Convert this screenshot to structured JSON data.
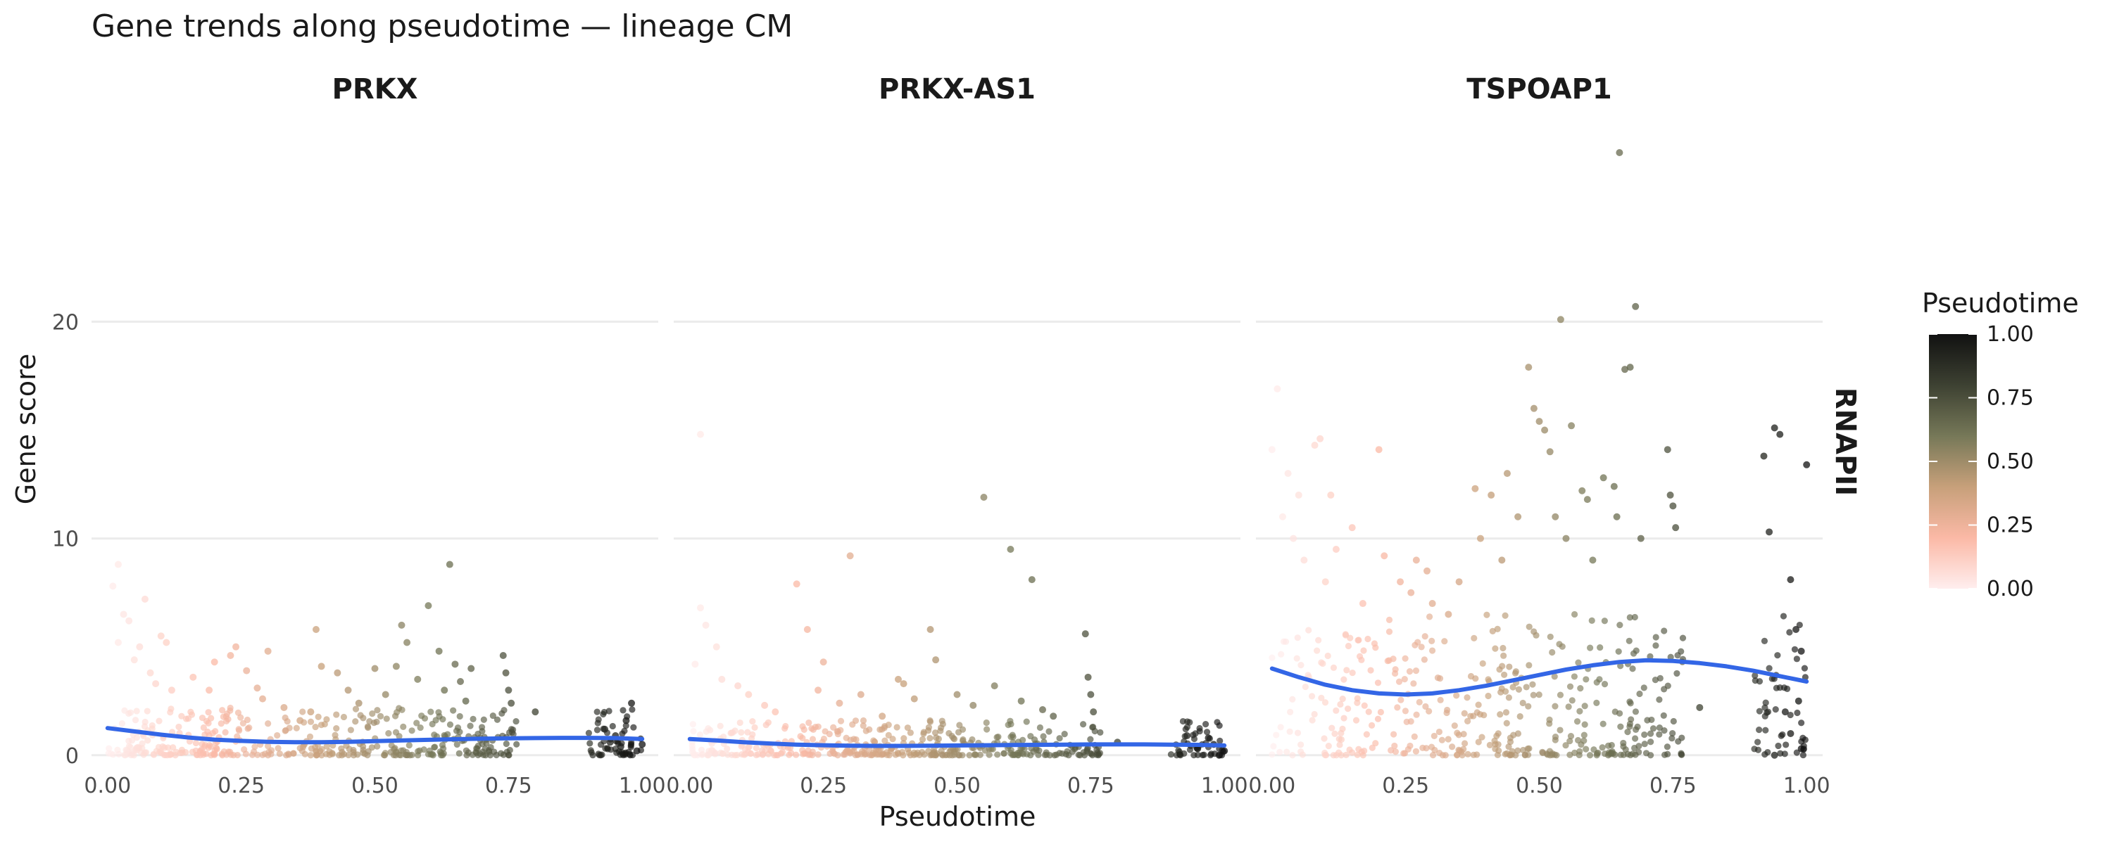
{
  "chart_data": {
    "type": "scatter",
    "title": "Gene trends along pseudotime — lineage CM",
    "xlabel": "Pseudotime",
    "ylabel": "Gene score",
    "xlim": [
      -0.03,
      1.03
    ],
    "ylim": [
      -1.5,
      29
    ],
    "x_ticks": [
      0.0,
      0.25,
      0.5,
      0.75,
      1.0
    ],
    "x_tick_labels": [
      "0.00",
      "0.25",
      "0.50",
      "0.75",
      "1.00"
    ],
    "y_ticks": [
      0,
      10,
      20
    ],
    "y_tick_labels": [
      "0",
      "10",
      "20"
    ],
    "row_strip": "RNAPII",
    "grid": "major-horizontal",
    "legend": {
      "title": "Pseudotime",
      "type": "colorbar",
      "placement": "right",
      "ticks": [
        0.0,
        0.25,
        0.5,
        0.75,
        1.0
      ],
      "tick_labels": [
        "0.00",
        "0.25",
        "0.50",
        "0.75",
        "1.00"
      ],
      "colors": [
        "#ffeeee",
        "#fbb9a6",
        "#c7a07a",
        "#767858",
        "#3d4132",
        "#111111"
      ]
    },
    "trend_color": "#3366e6",
    "panels": [
      {
        "name": "PRKX",
        "trend": [
          [
            0.0,
            1.25
          ],
          [
            0.05,
            1.1
          ],
          [
            0.1,
            0.95
          ],
          [
            0.15,
            0.82
          ],
          [
            0.2,
            0.72
          ],
          [
            0.25,
            0.66
          ],
          [
            0.3,
            0.62
          ],
          [
            0.35,
            0.6
          ],
          [
            0.4,
            0.6
          ],
          [
            0.45,
            0.62
          ],
          [
            0.5,
            0.65
          ],
          [
            0.55,
            0.68
          ],
          [
            0.6,
            0.71
          ],
          [
            0.65,
            0.74
          ],
          [
            0.7,
            0.76
          ],
          [
            0.75,
            0.78
          ],
          [
            0.8,
            0.79
          ],
          [
            0.85,
            0.8
          ],
          [
            0.9,
            0.8
          ],
          [
            0.95,
            0.79
          ],
          [
            1.0,
            0.75
          ]
        ],
        "points": [
          [
            0.02,
            8.8
          ],
          [
            0.01,
            7.8
          ],
          [
            0.03,
            6.5
          ],
          [
            0.07,
            7.2
          ],
          [
            0.04,
            6.2
          ],
          [
            0.02,
            5.2
          ],
          [
            0.06,
            5.0
          ],
          [
            0.1,
            5.5
          ],
          [
            0.11,
            5.2
          ],
          [
            0.05,
            4.4
          ],
          [
            0.08,
            3.8
          ],
          [
            0.09,
            3.3
          ],
          [
            0.12,
            3.0
          ],
          [
            0.16,
            3.6
          ],
          [
            0.19,
            3.0
          ],
          [
            0.2,
            4.3
          ],
          [
            0.23,
            4.6
          ],
          [
            0.24,
            5.0
          ],
          [
            0.26,
            3.9
          ],
          [
            0.28,
            3.1
          ],
          [
            0.3,
            4.8
          ],
          [
            0.29,
            2.6
          ],
          [
            0.33,
            2.2
          ],
          [
            0.36,
            1.6
          ],
          [
            0.39,
            5.8
          ],
          [
            0.4,
            4.1
          ],
          [
            0.38,
            2.0
          ],
          [
            0.43,
            3.8
          ],
          [
            0.45,
            3.0
          ],
          [
            0.47,
            2.4
          ],
          [
            0.5,
            4.0
          ],
          [
            0.52,
            2.8
          ],
          [
            0.54,
            4.1
          ],
          [
            0.55,
            6.0
          ],
          [
            0.56,
            5.2
          ],
          [
            0.58,
            3.5
          ],
          [
            0.6,
            6.9
          ],
          [
            0.62,
            4.8
          ],
          [
            0.63,
            3.0
          ],
          [
            0.64,
            8.8
          ],
          [
            0.65,
            4.2
          ],
          [
            0.66,
            3.4
          ],
          [
            0.67,
            2.5
          ],
          [
            0.68,
            4.0
          ],
          [
            0.74,
            4.6
          ],
          [
            0.745,
            3.8
          ],
          [
            0.75,
            3.0
          ],
          [
            0.755,
            2.4
          ],
          [
            0.8,
            2.0
          ],
          [
            0.93,
            1.2
          ],
          [
            0.95,
            0.9
          ],
          [
            0.97,
            1.6
          ],
          [
            0.98,
            2.4
          ],
          [
            0.96,
            0.4
          ],
          [
            0.99,
            0.2
          ],
          [
            0.94,
            0.6
          ],
          [
            1.0,
            0.5
          ]
        ]
      },
      {
        "name": "PRKX-AS1",
        "trend": [
          [
            0.0,
            0.75
          ],
          [
            0.05,
            0.68
          ],
          [
            0.1,
            0.6
          ],
          [
            0.15,
            0.54
          ],
          [
            0.2,
            0.49
          ],
          [
            0.25,
            0.46
          ],
          [
            0.3,
            0.44
          ],
          [
            0.35,
            0.43
          ],
          [
            0.4,
            0.43
          ],
          [
            0.45,
            0.44
          ],
          [
            0.5,
            0.45
          ],
          [
            0.55,
            0.46
          ],
          [
            0.6,
            0.47
          ],
          [
            0.65,
            0.48
          ],
          [
            0.7,
            0.49
          ],
          [
            0.75,
            0.5
          ],
          [
            0.8,
            0.5
          ],
          [
            0.85,
            0.5
          ],
          [
            0.9,
            0.49
          ],
          [
            0.95,
            0.48
          ],
          [
            1.0,
            0.45
          ]
        ],
        "points": [
          [
            0.02,
            14.8
          ],
          [
            0.02,
            6.8
          ],
          [
            0.03,
            6.0
          ],
          [
            0.05,
            5.0
          ],
          [
            0.01,
            4.2
          ],
          [
            0.06,
            3.5
          ],
          [
            0.09,
            3.2
          ],
          [
            0.11,
            2.8
          ],
          [
            0.14,
            2.3
          ],
          [
            0.16,
            2.0
          ],
          [
            0.2,
            7.9
          ],
          [
            0.22,
            5.8
          ],
          [
            0.25,
            4.3
          ],
          [
            0.24,
            3.0
          ],
          [
            0.28,
            2.4
          ],
          [
            0.3,
            9.2
          ],
          [
            0.32,
            2.8
          ],
          [
            0.36,
            1.8
          ],
          [
            0.39,
            3.5
          ],
          [
            0.4,
            3.3
          ],
          [
            0.42,
            2.6
          ],
          [
            0.45,
            5.8
          ],
          [
            0.46,
            4.4
          ],
          [
            0.5,
            2.8
          ],
          [
            0.53,
            2.3
          ],
          [
            0.55,
            11.9
          ],
          [
            0.57,
            3.2
          ],
          [
            0.6,
            9.5
          ],
          [
            0.62,
            2.5
          ],
          [
            0.64,
            8.1
          ],
          [
            0.66,
            2.1
          ],
          [
            0.68,
            1.8
          ],
          [
            0.74,
            5.6
          ],
          [
            0.745,
            3.6
          ],
          [
            0.75,
            2.8
          ],
          [
            0.755,
            2.0
          ],
          [
            0.8,
            0.6
          ],
          [
            0.93,
            0.9
          ],
          [
            0.95,
            0.3
          ],
          [
            0.97,
            0.8
          ],
          [
            0.98,
            0.5
          ],
          [
            1.0,
            0.2
          ],
          [
            0.99,
            0.0
          ]
        ]
      },
      {
        "name": "TSPOAP1",
        "trend": [
          [
            0.0,
            4.0
          ],
          [
            0.05,
            3.6
          ],
          [
            0.1,
            3.25
          ],
          [
            0.15,
            3.0
          ],
          [
            0.2,
            2.85
          ],
          [
            0.25,
            2.8
          ],
          [
            0.3,
            2.85
          ],
          [
            0.35,
            3.0
          ],
          [
            0.4,
            3.2
          ],
          [
            0.45,
            3.45
          ],
          [
            0.5,
            3.7
          ],
          [
            0.55,
            3.95
          ],
          [
            0.6,
            4.15
          ],
          [
            0.65,
            4.3
          ],
          [
            0.7,
            4.38
          ],
          [
            0.75,
            4.35
          ],
          [
            0.8,
            4.25
          ],
          [
            0.85,
            4.1
          ],
          [
            0.9,
            3.9
          ],
          [
            0.95,
            3.65
          ],
          [
            1.0,
            3.4
          ]
        ],
        "points": [
          [
            0.01,
            16.9
          ],
          [
            0.0,
            14.1
          ],
          [
            0.03,
            13.0
          ],
          [
            0.05,
            12.0
          ],
          [
            0.02,
            11.0
          ],
          [
            0.04,
            10.0
          ],
          [
            0.08,
            14.3
          ],
          [
            0.09,
            14.6
          ],
          [
            0.11,
            12.0
          ],
          [
            0.06,
            9.0
          ],
          [
            0.1,
            8.0
          ],
          [
            0.12,
            9.5
          ],
          [
            0.15,
            10.5
          ],
          [
            0.17,
            7.0
          ],
          [
            0.2,
            14.1
          ],
          [
            0.21,
            9.2
          ],
          [
            0.24,
            8.0
          ],
          [
            0.26,
            7.5
          ],
          [
            0.27,
            9.0
          ],
          [
            0.29,
            8.5
          ],
          [
            0.3,
            7.0
          ],
          [
            0.33,
            6.5
          ],
          [
            0.35,
            8.0
          ],
          [
            0.38,
            12.3
          ],
          [
            0.39,
            10.0
          ],
          [
            0.41,
            12.0
          ],
          [
            0.43,
            9.0
          ],
          [
            0.44,
            13.0
          ],
          [
            0.46,
            11.0
          ],
          [
            0.48,
            17.9
          ],
          [
            0.49,
            16.0
          ],
          [
            0.5,
            15.4
          ],
          [
            0.51,
            15.0
          ],
          [
            0.52,
            14.0
          ],
          [
            0.53,
            11.0
          ],
          [
            0.54,
            20.1
          ],
          [
            0.55,
            10.0
          ],
          [
            0.56,
            15.2
          ],
          [
            0.58,
            12.2
          ],
          [
            0.59,
            11.8
          ],
          [
            0.6,
            9.0
          ],
          [
            0.62,
            12.8
          ],
          [
            0.64,
            12.4
          ],
          [
            0.645,
            11.0
          ],
          [
            0.65,
            27.8
          ],
          [
            0.66,
            17.8
          ],
          [
            0.67,
            17.9
          ],
          [
            0.68,
            20.7
          ],
          [
            0.69,
            10.0
          ],
          [
            0.74,
            14.1
          ],
          [
            0.745,
            12.0
          ],
          [
            0.75,
            11.5
          ],
          [
            0.755,
            10.5
          ],
          [
            0.8,
            2.2
          ],
          [
            0.92,
            13.8
          ],
          [
            0.93,
            10.3
          ],
          [
            0.94,
            15.1
          ],
          [
            0.95,
            14.8
          ],
          [
            0.96,
            2.0
          ],
          [
            0.97,
            8.1
          ],
          [
            0.98,
            5.8
          ],
          [
            0.99,
            4.8
          ],
          [
            1.0,
            13.4
          ],
          [
            0.985,
            2.5
          ],
          [
            0.97,
            1.0
          ],
          [
            0.99,
            0.3
          ],
          [
            0.94,
            0.0
          ]
        ]
      }
    ]
  }
}
